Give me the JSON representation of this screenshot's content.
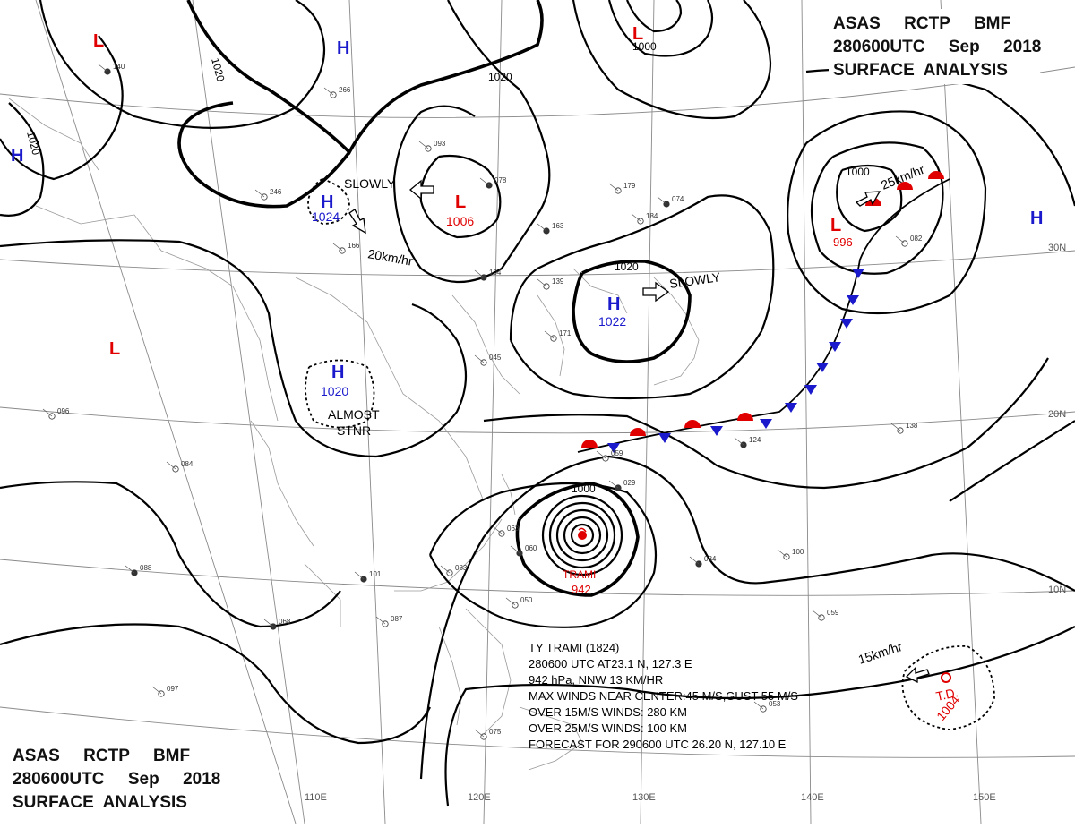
{
  "header_top_right": [
    "ASAS     RCTP     BMF",
    "280600UTC     Sep     2018",
    "SURFACE  ANALYSIS"
  ],
  "header_bottom_left": [
    "ASAS     RCTP     BMF",
    "280600UTC     Sep     2018",
    "SURFACE  ANALYSIS"
  ],
  "longitude_labels": [
    "110E",
    "120E",
    "130E",
    "140E",
    "150E"
  ],
  "latitude_labels": [
    "30N",
    "20N",
    "10N"
  ],
  "isobar_labels": [
    "1020",
    "1020",
    "1020",
    "1020",
    "1000",
    "1000",
    "1000"
  ],
  "pressure_centers": [
    {
      "type": "L",
      "value": "",
      "color": "#e00000"
    },
    {
      "type": "H",
      "value": "",
      "color": "#1a1acc"
    },
    {
      "type": "H",
      "value": "",
      "color": "#1a1acc"
    },
    {
      "type": "L",
      "value": "",
      "color": "#e00000"
    },
    {
      "type": "H",
      "value": "1024",
      "color": "#1a1acc"
    },
    {
      "type": "L",
      "value": "1006",
      "color": "#e00000"
    },
    {
      "type": "H",
      "value": "1022",
      "color": "#1a1acc"
    },
    {
      "type": "H",
      "value": "1020",
      "color": "#1a1acc"
    },
    {
      "type": "L",
      "value": "",
      "color": "#e00000"
    },
    {
      "type": "L",
      "value": "996",
      "color": "#e00000"
    },
    {
      "type": "H",
      "value": "",
      "color": "#1a1acc"
    }
  ],
  "motion_labels": [
    "SLOWLY",
    "20km/hr",
    "SLOWLY",
    "25km/hr",
    "ALMOST",
    "STNR",
    "15km/hr"
  ],
  "typhoon": {
    "name": "TRAMI",
    "pressure": "942",
    "info_lines": [
      "TY  TRAMI  (1824)",
      "280600 UTC  AT23.1 N, 127.3 E",
      "942 hPa, NNW  13 KM/HR",
      "MAX WINDS NEAR CENTER:45 M/S,GUST 55 M/S",
      "OVER 15M/S WINDS: 280 KM",
      "OVER 25M/S WINDS: 100 KM",
      "FORECAST FOR 290600 UTC 26.20 N, 127.10 E"
    ]
  },
  "tropical_depression": {
    "label": "T.D.",
    "pressure": "1004"
  },
  "colors": {
    "high": "#1a1acc",
    "low": "#e00000",
    "warm_front": "#e00000",
    "cold_front": "#1a1acc"
  },
  "station_values": [
    "140",
    "266",
    "093",
    "078",
    "166",
    "246",
    "163",
    "179",
    "184",
    "104",
    "139",
    "171",
    "101",
    "087",
    "083",
    "068",
    "096",
    "084",
    "088",
    "045",
    "059",
    "029",
    "050",
    "063",
    "060",
    "097",
    "075",
    "124",
    "138",
    "100",
    "084",
    "059",
    "082",
    "074",
    "053"
  ]
}
